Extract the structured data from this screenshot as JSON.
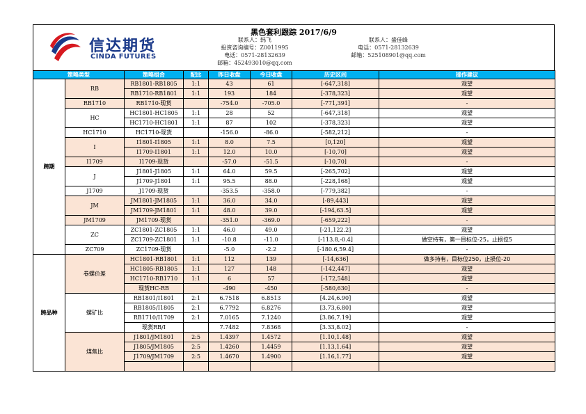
{
  "header": {
    "title": "黑色套利跟踪 2017/6/9",
    "logo_cn": "信达期货",
    "logo_en": "CINDA FUTURES",
    "contact_left": [
      "联系人：韩飞",
      "投资咨询编号：Z0011995",
      "电话：0571-28132639",
      "邮箱：452493010@qq.com"
    ],
    "contact_right": [
      "联系人：盛佳峰",
      "电话：0571-28132639",
      "邮箱：525108901@qq.com"
    ]
  },
  "columns": [
    "策略类型",
    "策略组合",
    "配比",
    "昨日收盘",
    "今日收盘",
    "历史区间",
    "操作建议"
  ],
  "sections": [
    {
      "type": "跨期",
      "groups": [
        {
          "name": "RB",
          "hl": true,
          "rows": [
            {
              "combo": "RB1801-RB1805",
              "ratio": "1:1",
              "prev": "43",
              "today": "61",
              "range": "[-647,318]",
              "advice": "观望"
            },
            {
              "combo": "RB1710-RB1801",
              "ratio": "1:1",
              "prev": "193",
              "today": "184",
              "range": "[-378,323]",
              "advice": "观望"
            }
          ]
        },
        {
          "name": "RB1710",
          "hl": true,
          "rows": [
            {
              "combo": "RB1710-现货",
              "ratio": "",
              "prev": "-754.0",
              "today": "-705.0",
              "range": "[-771,391]",
              "advice": "-"
            }
          ]
        },
        {
          "name": "HC",
          "hl": false,
          "rows": [
            {
              "combo": "HC1801-HC1805",
              "ratio": "1:1",
              "prev": "28",
              "today": "52",
              "range": "[-647,318]",
              "advice": "观望"
            },
            {
              "combo": "HC1710-HC1801",
              "ratio": "1:1",
              "prev": "87",
              "today": "102",
              "range": "[-378,323]",
              "advice": "观望"
            }
          ]
        },
        {
          "name": "HC1710",
          "hl": false,
          "rows": [
            {
              "combo": "HC1710-现货",
              "ratio": "",
              "prev": "-156.0",
              "today": "-86.0",
              "range": "[-582,212]",
              "advice": "-"
            }
          ]
        },
        {
          "name": "I",
          "hl": true,
          "rows": [
            {
              "combo": "I1801-I1805",
              "ratio": "1:1",
              "prev": "8.0",
              "today": "7.5",
              "range": "[0,120]",
              "advice": "观望"
            },
            {
              "combo": "I1709-I1801",
              "ratio": "1:1",
              "prev": "12.0",
              "today": "10.0",
              "range": "[-10,70]",
              "advice": "观望"
            }
          ]
        },
        {
          "name": "I1709",
          "hl": true,
          "rows": [
            {
              "combo": "I1709-现货",
              "ratio": "",
              "prev": "-57.0",
              "today": "-51.5",
              "range": "[-10,70]",
              "advice": "-"
            }
          ]
        },
        {
          "name": "J",
          "hl": false,
          "rows": [
            {
              "combo": "J1801-J1805",
              "ratio": "1:1",
              "prev": "64.0",
              "today": "59.5",
              "range": "[-265,702]",
              "advice": "观望"
            },
            {
              "combo": "J1709-J1801",
              "ratio": "1:1",
              "prev": "95.5",
              "today": "88.0",
              "range": "[-228,168]",
              "advice": "观望"
            }
          ]
        },
        {
          "name": "J1709",
          "hl": false,
          "rows": [
            {
              "combo": "J1709-现货",
              "ratio": "",
              "prev": "-353.5",
              "today": "-358.0",
              "range": "[-779,382]",
              "advice": "-"
            }
          ]
        },
        {
          "name": "JM",
          "hl": true,
          "rows": [
            {
              "combo": "JM1801-JM1805",
              "ratio": "1:1",
              "prev": "36.0",
              "today": "34.0",
              "range": "[-89,443]",
              "advice": "观望"
            },
            {
              "combo": "JM1709-JM1801",
              "ratio": "1:1",
              "prev": "48.0",
              "today": "39.0",
              "range": "[-194,63.5]",
              "advice": "观望"
            }
          ]
        },
        {
          "name": "JM1709",
          "hl": true,
          "rows": [
            {
              "combo": "JM1709-现货",
              "ratio": "",
              "prev": "-351.0",
              "today": "-369.0",
              "range": "[-659,222]",
              "advice": "-"
            }
          ]
        },
        {
          "name": "ZC",
          "hl": false,
          "rows": [
            {
              "combo": "ZC1801-ZC1805",
              "ratio": "1:1",
              "prev": "46.0",
              "today": "49.0",
              "range": "[-21,122.2]",
              "advice": "观望"
            },
            {
              "combo": "ZC1709-ZC1801",
              "ratio": "1:1",
              "prev": "-10.8",
              "today": "-11.0",
              "range": "[-113.8,-0.4]",
              "advice": "做空持有，第一目标位-25，止损位5"
            }
          ]
        },
        {
          "name": "ZC709",
          "hl": false,
          "rows": [
            {
              "combo": "ZC1709-现货",
              "ratio": "",
              "prev": "-5.0",
              "today": "-2.2",
              "range": "[-180.6,59.4]",
              "advice": "-"
            }
          ]
        }
      ]
    },
    {
      "type": "跨品种",
      "groups": [
        {
          "name": "卷螺价差",
          "hl": true,
          "rows": [
            {
              "combo": "HC1801-RB1801",
              "ratio": "1:1",
              "prev": "112",
              "today": "139",
              "range": "[-14,636]",
              "advice": "做多持有，目标位250，止损位-20"
            },
            {
              "combo": "HC1805-RB1805",
              "ratio": "1:1",
              "prev": "127",
              "today": "148",
              "range": "[-142,447]",
              "advice": "观望"
            },
            {
              "combo": "HC1710-RB1710",
              "ratio": "1:1",
              "prev": "6",
              "today": "57",
              "range": "[-172,548]",
              "advice": "观望"
            },
            {
              "combo": "现货HC-RB",
              "ratio": "",
              "prev": "-490",
              "today": "-450",
              "range": "[-580,630]",
              "advice": "-"
            }
          ]
        },
        {
          "name": "螺矿比",
          "hl": false,
          "rows": [
            {
              "combo": "RB1801/I1801",
              "ratio": "2:1",
              "prev": "6.7518",
              "today": "6.8513",
              "range": "[4.24,6.90]",
              "advice": "观望"
            },
            {
              "combo": "RB1805/I1805",
              "ratio": "2:1",
              "prev": "6.7792",
              "today": "6.8276",
              "range": "[3.73,6.80]",
              "advice": "观望"
            },
            {
              "combo": "RB1710/I1709",
              "ratio": "2:1",
              "prev": "7.0165",
              "today": "7.1240",
              "range": "[3.86,7.19]",
              "advice": "观望"
            },
            {
              "combo": "现货RB/I",
              "ratio": "",
              "prev": "7.7482",
              "today": "7.8368",
              "range": "[3.33,8.02]",
              "advice": "-"
            }
          ]
        },
        {
          "name": "煤焦比",
          "hl": true,
          "rows": [
            {
              "combo": "J1801/JM1801",
              "ratio": "2:5",
              "prev": "1.4397",
              "today": "1.4572",
              "range": "[1.10,1.48]",
              "advice": "观望"
            },
            {
              "combo": "J1805/JM1805",
              "ratio": "2:5",
              "prev": "1.4260",
              "today": "1.4459",
              "range": "[1.13,1.64]",
              "advice": "观望"
            },
            {
              "combo": "J1709/JM1709",
              "ratio": "2:5",
              "prev": "1.4670",
              "today": "1.4900",
              "range": "[1.16,1.77]",
              "advice": "观望"
            },
            {
              "combo": "",
              "ratio": "",
              "prev": "",
              "today": "",
              "range": "",
              "advice": ""
            }
          ]
        }
      ]
    }
  ]
}
